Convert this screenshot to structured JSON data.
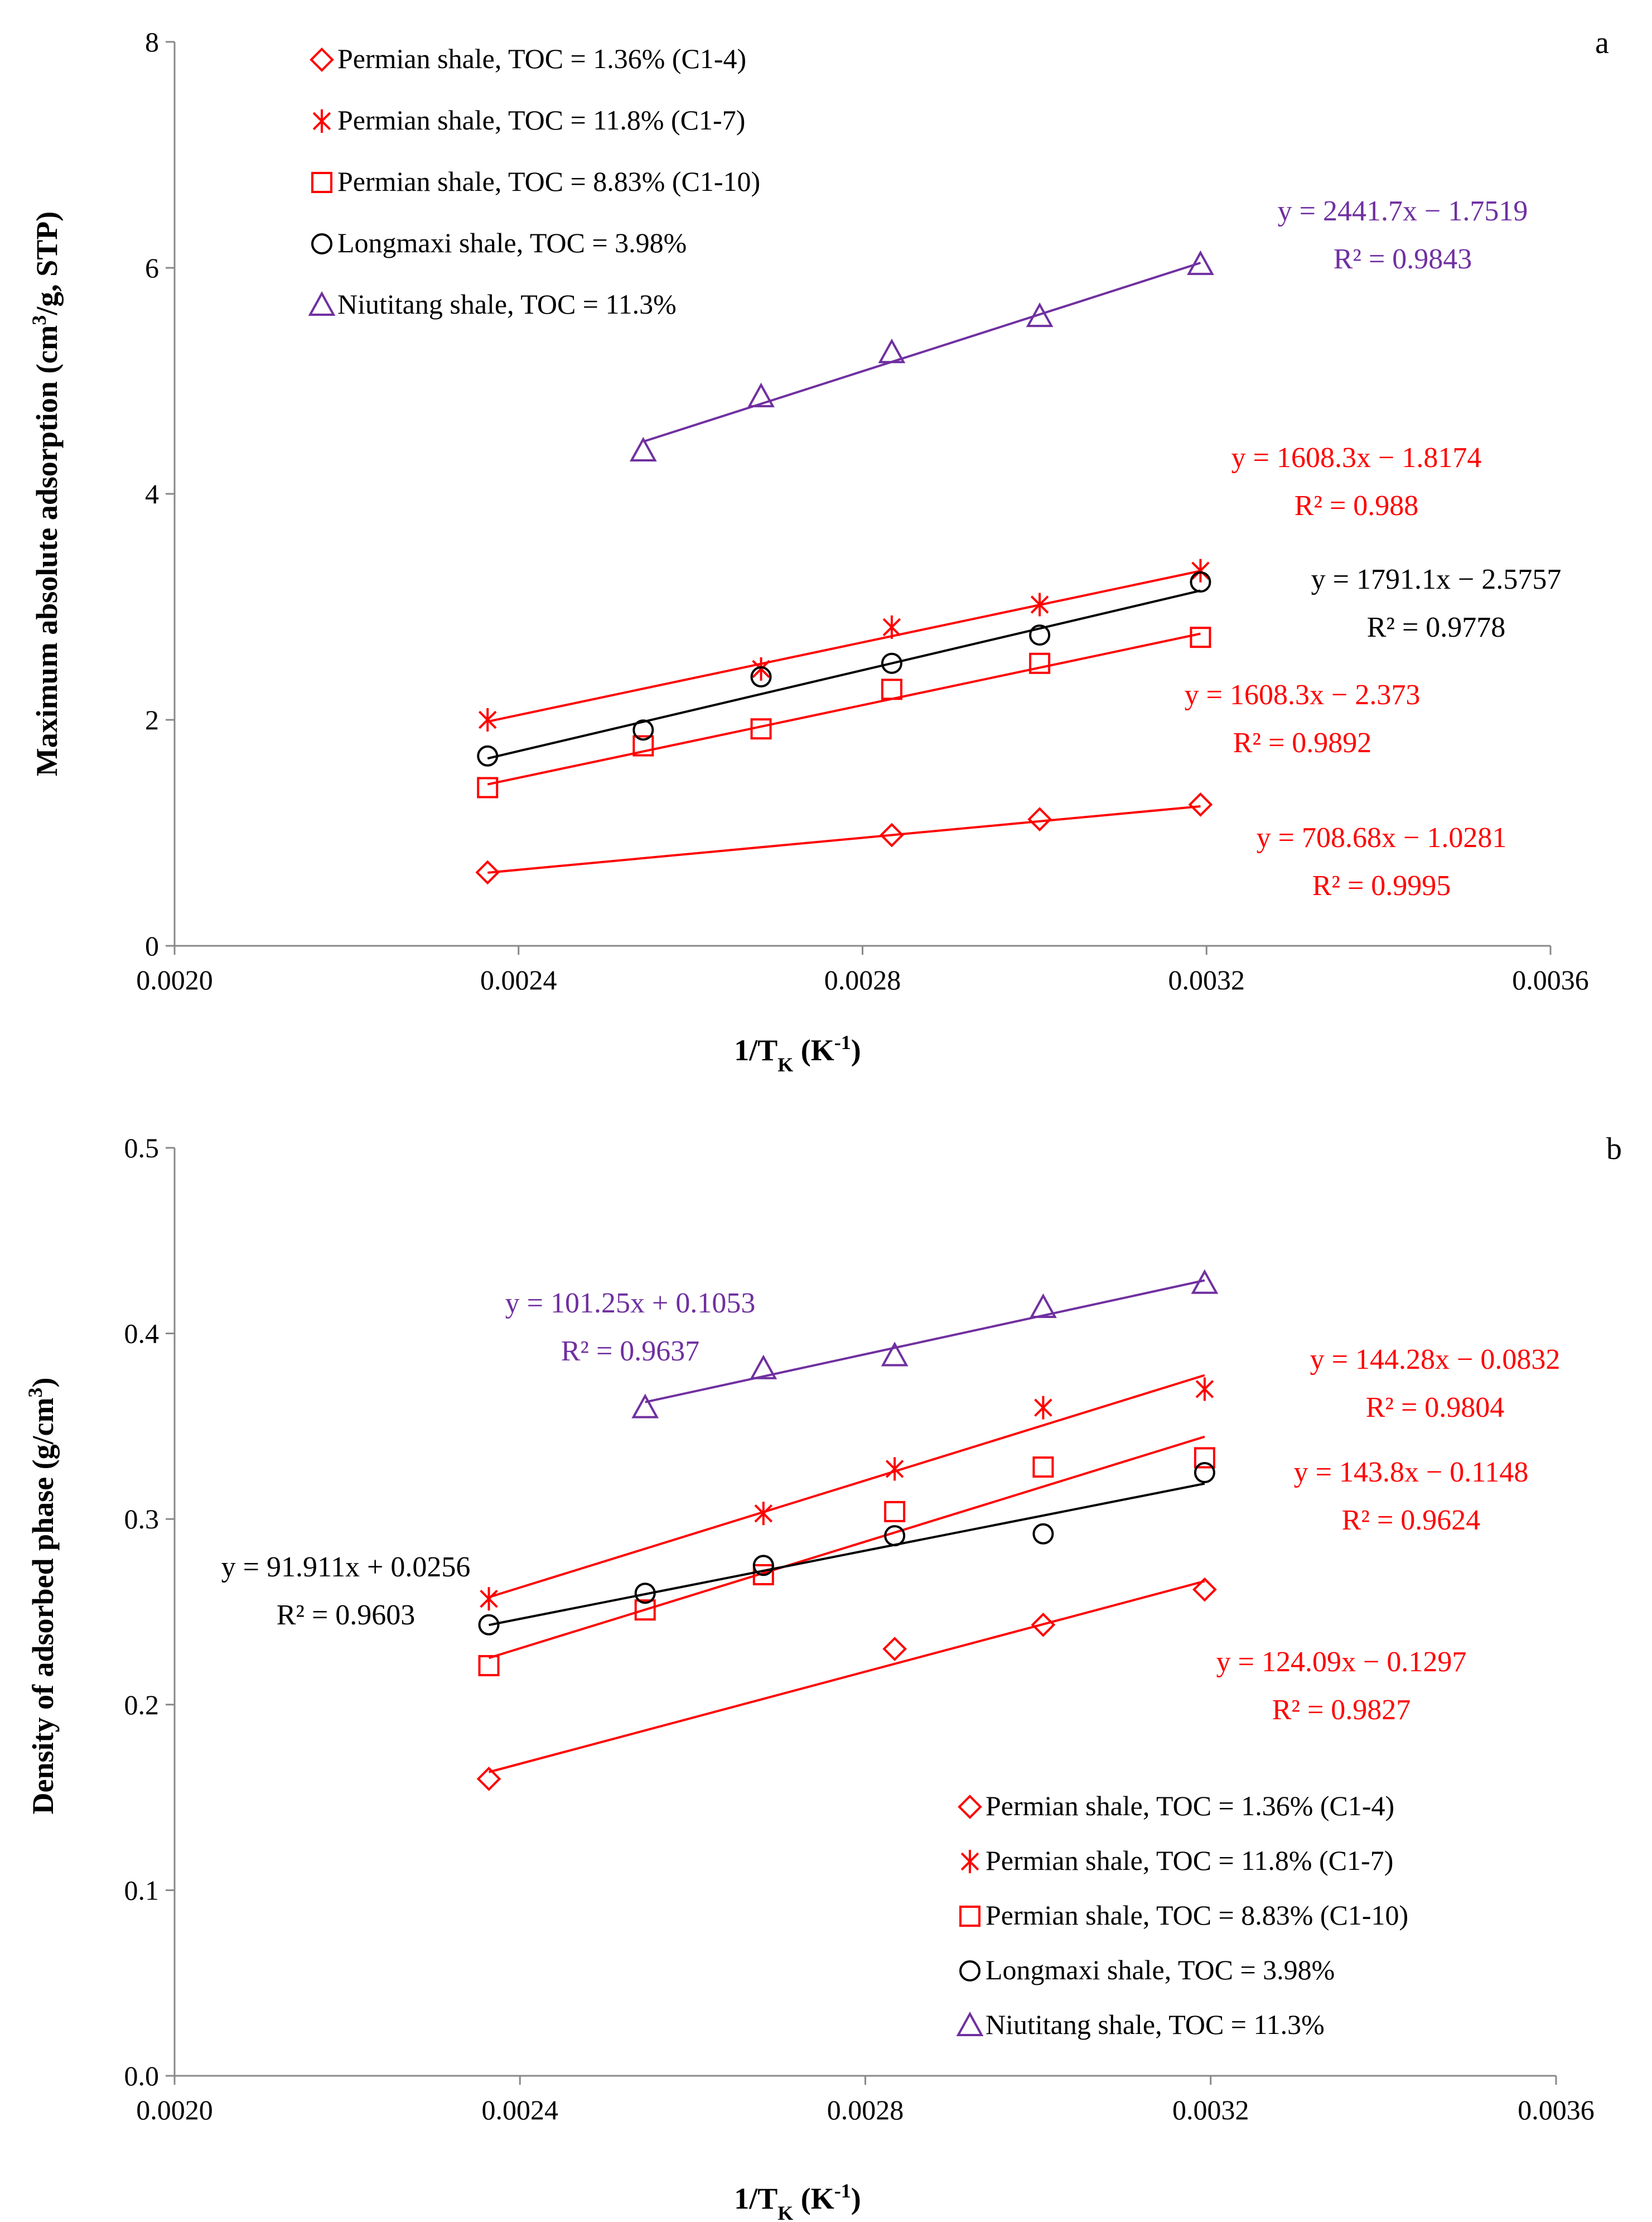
{
  "chart_data": [
    {
      "id": "a",
      "type": "scatter",
      "panel_label": "a",
      "xlabel_main": "1/T",
      "xlabel_sub": "K",
      "xlabel_unit_pre": " (K",
      "xlabel_unit_sup": "-1",
      "xlabel_unit_post": ")",
      "ylabel_pre": "Maximum absolute adsorption (cm",
      "ylabel_sup": "3",
      "ylabel_post": "/g, STP)",
      "xlim": [
        0.002,
        0.0036
      ],
      "ylim": [
        0,
        8
      ],
      "xticks": [
        "0.0020",
        "0.0024",
        "0.0028",
        "0.0032",
        "0.0036"
      ],
      "xtick_values": [
        0.002,
        0.0024,
        0.0028,
        0.0032,
        0.0036
      ],
      "yticks": [
        "0",
        "2",
        "4",
        "6",
        "8"
      ],
      "ytick_values": [
        0,
        2,
        4,
        6,
        8
      ],
      "grid": false,
      "legend_position": "top-left",
      "series": [
        {
          "name": "Permian shale, TOC = 1.36% (C1-4)",
          "marker": "diamond",
          "color": "#ff0000",
          "x": [
            0.002364,
            0.002834,
            0.003006,
            0.003193
          ],
          "y": [
            0.65,
            0.98,
            1.12,
            1.25
          ],
          "fit": {
            "slope": 708.68,
            "intercept": -1.0281,
            "x_range": [
              0.002364,
              0.003193
            ]
          },
          "equation": "y = 708.68x − 1.0281",
          "r2": "R² = 0.9995"
        },
        {
          "name": "Permian shale, TOC = 11.8% (C1-7)",
          "marker": "star",
          "color": "#ff0000",
          "x": [
            0.002364,
            0.002682,
            0.002834,
            0.003006,
            0.003193
          ],
          "y": [
            2.0,
            2.45,
            2.82,
            3.02,
            3.32
          ],
          "fit": {
            "slope": 1608.3,
            "intercept": -1.8174,
            "x_range": [
              0.002364,
              0.003193
            ]
          },
          "equation": "y = 1608.3x − 1.8174",
          "r2": "R² = 0.988"
        },
        {
          "name": "Permian shale, TOC = 8.83% (C1-10)",
          "marker": "square",
          "color": "#ff0000",
          "x": [
            0.002364,
            0.002545,
            0.002682,
            0.002834,
            0.003006,
            0.003193
          ],
          "y": [
            1.4,
            1.77,
            1.92,
            2.27,
            2.5,
            2.73
          ],
          "fit": {
            "slope": 1608.3,
            "intercept": -2.373,
            "x_range": [
              0.002364,
              0.003193
            ]
          },
          "equation": "y = 1608.3x − 2.373",
          "r2": "R² = 0.9892"
        },
        {
          "name": "Longmaxi shale, TOC = 3.98%",
          "marker": "circle",
          "color": "#000000",
          "x": [
            0.002364,
            0.002545,
            0.002682,
            0.002834,
            0.003006,
            0.003193
          ],
          "y": [
            1.68,
            1.91,
            2.38,
            2.5,
            2.75,
            3.22
          ],
          "fit": {
            "slope": 1791.1,
            "intercept": -2.5757,
            "x_range": [
              0.002364,
              0.003193
            ]
          },
          "equation": "y = 1791.1x − 2.5757",
          "r2": "R² = 0.9778"
        },
        {
          "name": "Niutitang shale, TOC = 11.3%",
          "marker": "triangle",
          "color": "#7030a0",
          "x": [
            0.002545,
            0.002682,
            0.002834,
            0.003006,
            0.003193
          ],
          "y": [
            4.38,
            4.86,
            5.25,
            5.57,
            6.03
          ],
          "fit": {
            "slope": 2441.7,
            "intercept": -1.7519,
            "x_range": [
              0.002545,
              0.003193
            ]
          },
          "equation": "y = 2441.7x − 1.7519",
          "r2": "R² = 0.9843"
        }
      ]
    },
    {
      "id": "b",
      "type": "scatter",
      "panel_label": "b",
      "xlabel_main": "1/T",
      "xlabel_sub": "K",
      "xlabel_unit_pre": " (K",
      "xlabel_unit_sup": "-1",
      "xlabel_unit_post": ")",
      "ylabel_pre": "Density of adsorbed phase (g/cm",
      "ylabel_sup": "3",
      "ylabel_post": ")",
      "xlim": [
        0.002,
        0.0036
      ],
      "ylim": [
        0,
        0.5
      ],
      "xticks": [
        "0.0020",
        "0.0024",
        "0.0028",
        "0.0032",
        "0.0036"
      ],
      "xtick_values": [
        0.002,
        0.0024,
        0.0028,
        0.0032,
        0.0036
      ],
      "yticks": [
        "0.0",
        "0.1",
        "0.2",
        "0.3",
        "0.4",
        "0.5"
      ],
      "ytick_values": [
        0,
        0.1,
        0.2,
        0.3,
        0.4,
        0.5
      ],
      "grid": false,
      "legend_position": "bottom-right",
      "series": [
        {
          "name": "Permian shale, TOC = 1.36% (C1-4)",
          "marker": "diamond",
          "color": "#ff0000",
          "x": [
            0.002364,
            0.002834,
            0.003006,
            0.003193
          ],
          "y": [
            0.16,
            0.23,
            0.243,
            0.262
          ],
          "fit": {
            "slope": 124.09,
            "intercept": -0.1297,
            "x_range": [
              0.002364,
              0.003193
            ]
          },
          "equation": "y = 124.09x − 0.1297",
          "r2": "R² = 0.9827"
        },
        {
          "name": "Permian shale, TOC = 11.8% (C1-7)",
          "marker": "star",
          "color": "#ff0000",
          "x": [
            0.002364,
            0.002682,
            0.002834,
            0.003006,
            0.003193
          ],
          "y": [
            0.257,
            0.303,
            0.327,
            0.36,
            0.37
          ],
          "fit": {
            "slope": 144.28,
            "intercept": -0.0832,
            "x_range": [
              0.002364,
              0.003193
            ]
          },
          "equation": "y = 144.28x − 0.0832",
          "r2": "R² = 0.9804"
        },
        {
          "name": "Permian shale, TOC = 8.83% (C1-10)",
          "marker": "square",
          "color": "#ff0000",
          "x": [
            0.002364,
            0.002545,
            0.002682,
            0.002834,
            0.003006,
            0.003193
          ],
          "y": [
            0.221,
            0.251,
            0.27,
            0.304,
            0.328,
            0.333
          ],
          "fit": {
            "slope": 143.8,
            "intercept": -0.1148,
            "x_range": [
              0.002364,
              0.003193
            ]
          },
          "equation": "y = 143.8x − 0.1148",
          "r2": "R² = 0.9624"
        },
        {
          "name": "Longmaxi shale, TOC = 3.98%",
          "marker": "circle",
          "color": "#000000",
          "x": [
            0.002364,
            0.002545,
            0.002682,
            0.002834,
            0.003006,
            0.003193
          ],
          "y": [
            0.243,
            0.26,
            0.275,
            0.291,
            0.292,
            0.325
          ],
          "fit": {
            "slope": 91.911,
            "intercept": 0.0256,
            "x_range": [
              0.002364,
              0.003193
            ]
          },
          "equation": "y = 91.911x + 0.0256",
          "r2": "R² = 0.9603"
        },
        {
          "name": "Niutitang shale, TOC = 11.3%",
          "marker": "triangle",
          "color": "#7030a0",
          "x": [
            0.002545,
            0.002682,
            0.002834,
            0.003006,
            0.003193
          ],
          "y": [
            0.36,
            0.381,
            0.388,
            0.414,
            0.427
          ],
          "fit": {
            "slope": 101.25,
            "intercept": 0.1053,
            "x_range": [
              0.002545,
              0.003193
            ]
          },
          "equation": "y = 101.25x + 0.1053",
          "r2": "R² = 0.9637"
        }
      ]
    }
  ]
}
